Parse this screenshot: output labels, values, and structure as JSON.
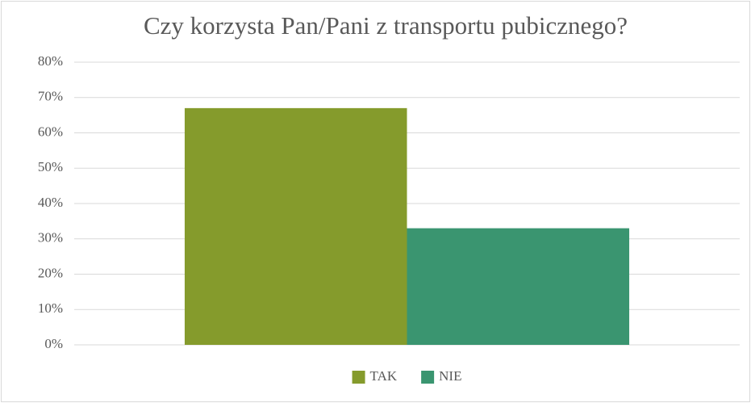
{
  "chart_data": {
    "type": "bar",
    "title": "Czy korzysta Pan/Pani z transportu pubicznego?",
    "categories": [
      null
    ],
    "series": [
      {
        "name": "TAK",
        "color": "#859b2c",
        "values": [
          67
        ]
      },
      {
        "name": "NIE",
        "color": "#3a9570",
        "values": [
          33
        ]
      }
    ],
    "ylim": [
      0,
      80
    ],
    "yticks": [
      {
        "value": 0,
        "label": "0%"
      },
      {
        "value": 10,
        "label": "10%"
      },
      {
        "value": 20,
        "label": "20%"
      },
      {
        "value": 30,
        "label": "30%"
      },
      {
        "value": 40,
        "label": "40%"
      },
      {
        "value": 50,
        "label": "50%"
      },
      {
        "value": 60,
        "label": "60%"
      },
      {
        "value": 70,
        "label": "70%"
      },
      {
        "value": 80,
        "label": "80%"
      }
    ],
    "grid": true,
    "legend": "bottom"
  }
}
